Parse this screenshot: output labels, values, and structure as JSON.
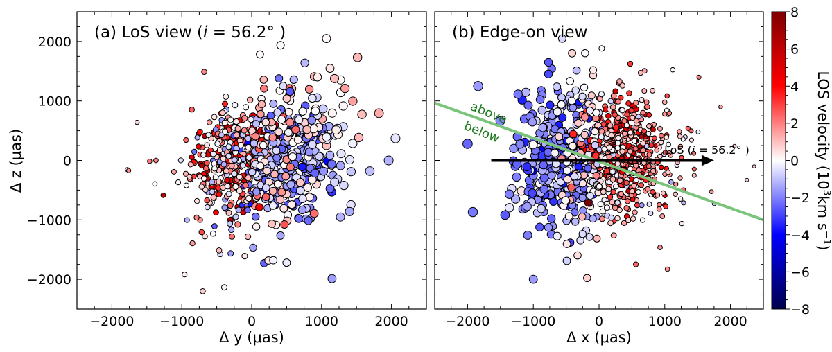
{
  "chart_data": [
    {
      "type": "scatter",
      "title": "(a) LoS view (i = 56.2°)",
      "title_parts": {
        "prefix": "(a) LoS view (",
        "sym": "i",
        "rest": " = 56.2° )"
      },
      "xlabel": "Δ y (μas)",
      "ylabel": "Δ z (μas)",
      "xlim": [
        -2500,
        2500
      ],
      "ylim": [
        -2500,
        2500
      ],
      "xticks": [
        -2000,
        -1000,
        0,
        1000,
        2000
      ],
      "yticks": [
        -2000,
        -1000,
        0,
        1000,
        2000
      ],
      "xtick_labels": [
        "−2000",
        "−1000",
        "0",
        "1000",
        "2000"
      ],
      "ytick_labels": [
        "−2000",
        "−1000",
        "0",
        "1000",
        "2000"
      ],
      "clusters": [
        {
          "n": 280,
          "x": -180,
          "y": 0,
          "sx": 320,
          "sy": 380,
          "v": 3.2,
          "dv": 1.8
        },
        {
          "n": 320,
          "x": 420,
          "y": -40,
          "sx": 420,
          "sy": 420,
          "v": -1.6,
          "dv": 1.0
        },
        {
          "n": 170,
          "x": -200,
          "y": -250,
          "sx": 420,
          "sy": 600,
          "v": 0.6,
          "dv": 1.0
        },
        {
          "n": 90,
          "x": 700,
          "y": 700,
          "sx": 500,
          "sy": 450,
          "v": 0.2,
          "dv": 0.8
        }
      ],
      "points": [
        {
          "x": -1640,
          "y": 640,
          "v": 0.6
        },
        {
          "x": -1760,
          "y": -170,
          "v": 1.8
        },
        {
          "x": -1370,
          "y": 0,
          "v": 2.0
        },
        {
          "x": -960,
          "y": -1920,
          "v": 0.2
        },
        {
          "x": -700,
          "y": -2200,
          "v": 0.8
        },
        {
          "x": 1070,
          "y": 2050,
          "v": 0.1
        },
        {
          "x": 1960,
          "y": 0,
          "v": -1.2
        },
        {
          "x": 1150,
          "y": -1990,
          "v": -1.5
        },
        {
          "x": 760,
          "y": 1640,
          "v": -1.1
        },
        {
          "x": 1690,
          "y": -180,
          "v": -1.0
        },
        {
          "x": 1400,
          "y": -860,
          "v": -1.3
        },
        {
          "x": 310,
          "y": -1680,
          "v": -0.2
        },
        {
          "x": 500,
          "y": -1720,
          "v": -0.3
        },
        {
          "x": -100,
          "y": -1610,
          "v": 0.4
        },
        {
          "x": -680,
          "y": 1490,
          "v": 1.9
        },
        {
          "x": 390,
          "y": 1380,
          "v": -2.2
        },
        {
          "x": 550,
          "y": 1160,
          "v": -2.6
        }
      ]
    },
    {
      "type": "scatter",
      "title": "(b) Edge-on view",
      "xlabel": "Δ x (μas)",
      "xlim": [
        -2500,
        2500
      ],
      "ylim": [
        -2500,
        2500
      ],
      "xticks": [
        -2000,
        -1000,
        0,
        1000,
        2000
      ],
      "xtick_labels": [
        "−2000",
        "−1000",
        "0",
        "1000",
        "2000"
      ],
      "clusters": [
        {
          "n": 380,
          "x": -600,
          "y": 0,
          "sx": 300,
          "sy": 520,
          "v": -1.9,
          "dv": 0.9
        },
        {
          "n": 380,
          "x": 380,
          "y": 120,
          "sx": 260,
          "sy": 420,
          "v": 3.0,
          "dv": 1.6
        },
        {
          "n": 150,
          "x": -80,
          "y": 80,
          "sx": 300,
          "sy": 700,
          "v": 0.1,
          "dv": 0.7
        },
        {
          "n": 150,
          "x": 780,
          "y": 30,
          "sx": 420,
          "sy": 550,
          "v": 1.2,
          "dv": 1.0
        }
      ],
      "points": [
        {
          "x": -1840,
          "y": 1250,
          "v": -1.6
        },
        {
          "x": -2000,
          "y": 280,
          "v": -2.4
        },
        {
          "x": -1920,
          "y": -870,
          "v": -2.1
        },
        {
          "x": -1430,
          "y": -920,
          "v": -2.6
        },
        {
          "x": -1000,
          "y": -2000,
          "v": -1.6
        },
        {
          "x": -560,
          "y": 2050,
          "v": -0.6
        },
        {
          "x": -770,
          "y": 1650,
          "v": -2.6
        },
        {
          "x": -490,
          "y": -1690,
          "v": -0.7
        },
        {
          "x": 1520,
          "y": 1400,
          "v": 2.0
        },
        {
          "x": 1850,
          "y": 900,
          "v": 1.5
        },
        {
          "x": 2060,
          "y": 240,
          "v": 0.8
        },
        {
          "x": 2360,
          "y": -100,
          "v": 0.9
        },
        {
          "x": 2250,
          "y": -330,
          "v": 0.7
        },
        {
          "x": 1040,
          "y": -1830,
          "v": 1.7
        },
        {
          "x": 560,
          "y": -1750,
          "v": 2.4
        },
        {
          "x": -90,
          "y": 1520,
          "v": 0.3
        }
      ],
      "arrow": {
        "from": [
          -1640,
          0
        ],
        "to": [
          1750,
          0
        ],
        "label": "LoS (i = 56.2° )",
        "label_parts": {
          "prefix": "LoS (",
          "sym": "i",
          "rest": " = 56.2° )"
        }
      },
      "boundary_line": {
        "from": [
          -2500,
          965
        ],
        "to": [
          2500,
          -1000
        ],
        "color": "#7bc47b"
      },
      "annotations": {
        "above": "above",
        "below": "below"
      }
    }
  ],
  "colorbar": {
    "label": "LOS velocity (10³km s⁻¹)",
    "label_parts": {
      "prefix": "LOS velocity (10",
      "sup1": "3",
      "mid": "km s",
      "sup2": "−1",
      "suffix": ")"
    },
    "vmin": -8,
    "vmax": 8,
    "ticks": [
      -8,
      -6,
      -4,
      -2,
      0,
      2,
      4,
      6,
      8
    ],
    "tick_labels": [
      "−8",
      "−6",
      "−4",
      "−2",
      "0",
      "2",
      "4",
      "6",
      "8"
    ],
    "colormap": "seismic",
    "colors": {
      "low": "#00004c",
      "mid_low": "#0000ff",
      "center": "#ffffff",
      "mid_high": "#ff0000",
      "high": "#800000"
    }
  },
  "colors": {
    "axis": "#000000",
    "marker_edge": "#000000",
    "boundary": "#7bc47b",
    "annotation": "#1a7a1a"
  }
}
